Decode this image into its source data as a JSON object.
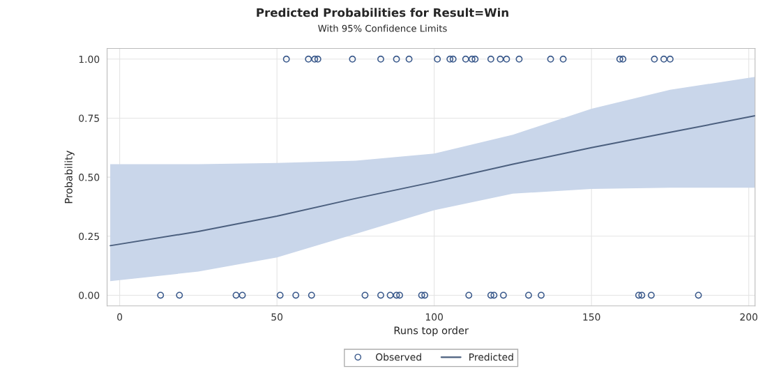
{
  "chart_data": {
    "type": "line",
    "title": "Predicted Probabilities for Result=Win",
    "subtitle": "With 95% Confidence Limits",
    "xlabel": "Runs top order",
    "ylabel": "Probability",
    "xlim": [
      -4,
      202
    ],
    "ylim": [
      -0.045,
      1.045
    ],
    "xticks": [
      0,
      50,
      100,
      150,
      200
    ],
    "yticks": [
      {
        "value": 0,
        "label": "0.00"
      },
      {
        "value": 0.25,
        "label": "0.25"
      },
      {
        "value": 0.5,
        "label": "0.50"
      },
      {
        "value": 0.75,
        "label": "0.75"
      },
      {
        "value": 1,
        "label": "1.00"
      }
    ],
    "grid": true,
    "legend": "bottom",
    "series": [
      {
        "name": "Observed",
        "type": "scatter",
        "marker": "circle",
        "color": "#3b5a8c",
        "x": [
          53,
          60,
          62,
          63,
          74,
          83,
          88,
          92,
          101,
          105,
          106,
          110,
          112,
          113,
          118,
          121,
          123,
          127,
          137,
          141,
          159,
          160,
          170,
          173,
          175,
          13,
          19,
          37,
          39,
          51,
          56,
          61,
          78,
          83,
          86,
          88,
          89,
          96,
          97,
          111,
          118,
          119,
          122,
          130,
          134,
          165,
          166,
          169,
          184
        ],
        "values": [
          1,
          1,
          1,
          1,
          1,
          1,
          1,
          1,
          1,
          1,
          1,
          1,
          1,
          1,
          1,
          1,
          1,
          1,
          1,
          1,
          1,
          1,
          1,
          1,
          1,
          0,
          0,
          0,
          0,
          0,
          0,
          0,
          0,
          0,
          0,
          0,
          0,
          0,
          0,
          0,
          0,
          0,
          0,
          0,
          0,
          0,
          0,
          0,
          0
        ]
      },
      {
        "name": "Predicted",
        "color": "#4b5f7e",
        "x": [
          -3,
          25,
          50,
          75,
          100,
          125,
          150,
          175,
          202
        ],
        "values": [
          0.21,
          0.27,
          0.335,
          0.41,
          0.48,
          0.555,
          0.625,
          0.69,
          0.76
        ],
        "lower": [
          0.06,
          0.1,
          0.16,
          0.26,
          0.36,
          0.43,
          0.45,
          0.455,
          0.455
        ],
        "upper": [
          0.555,
          0.555,
          0.56,
          0.57,
          0.6,
          0.68,
          0.79,
          0.87,
          0.925
        ]
      }
    ]
  }
}
